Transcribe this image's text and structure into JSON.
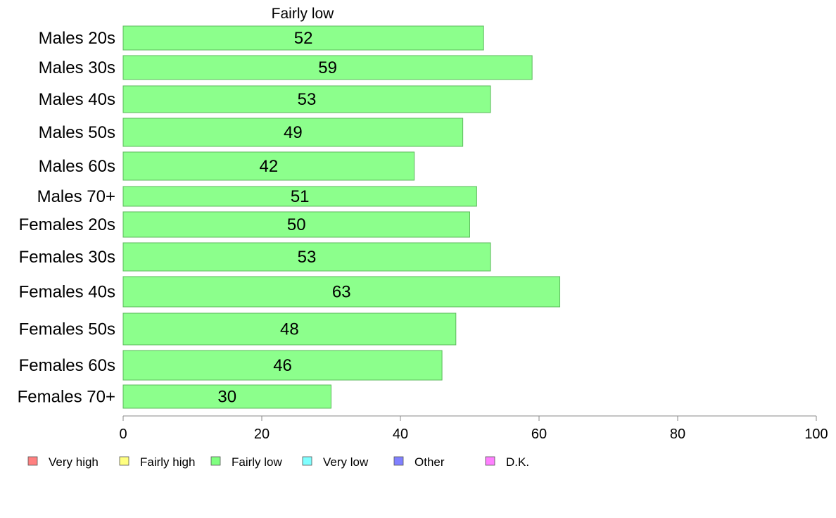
{
  "chart_data": {
    "type": "bar",
    "orientation": "horizontal",
    "title": "Fairly low",
    "categories": [
      "Males 20s",
      "Males 30s",
      "Males 40s",
      "Males 50s",
      "Males 60s",
      "Males 70+",
      "Females 20s",
      "Females 30s",
      "Females 40s",
      "Females 50s",
      "Females 60s",
      "Females 70+"
    ],
    "values": [
      52,
      59,
      53,
      49,
      42,
      51,
      50,
      53,
      63,
      48,
      46,
      30
    ],
    "xlim": [
      0,
      100
    ],
    "xticks": [
      0,
      20,
      40,
      60,
      80,
      100
    ],
    "xlabel": "",
    "ylabel": "",
    "grid": false,
    "bar_color": "#8cff8c",
    "bar_stroke": "#5cb85c",
    "legend": {
      "placement": "bottom",
      "entries": [
        {
          "label": "Very high",
          "color": "#ff8080"
        },
        {
          "label": "Fairly high",
          "color": "#ffff80"
        },
        {
          "label": "Fairly low",
          "color": "#80ff80"
        },
        {
          "label": "Very low",
          "color": "#80ffff"
        },
        {
          "label": "Other",
          "color": "#8080ff"
        },
        {
          "label": "D.K.",
          "color": "#ff80ff"
        }
      ]
    }
  }
}
